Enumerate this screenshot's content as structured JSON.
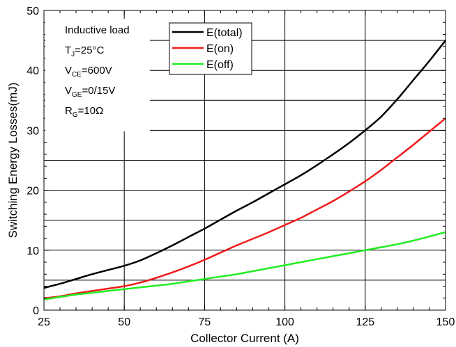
{
  "chart_data": {
    "type": "line",
    "xlabel": "Collector Current (A)",
    "ylabel": "Switching Energy Losses(mJ)",
    "xlim": [
      25,
      150
    ],
    "ylim": [
      0,
      50
    ],
    "x_ticks": [
      "25",
      "50",
      "75",
      "100",
      "125",
      "150"
    ],
    "y_ticks": [
      "0",
      "10",
      "20",
      "30",
      "40",
      "50"
    ],
    "grid": true,
    "legend_position": "top",
    "conditions": [
      {
        "main": "Inductive load",
        "sub": "",
        "rest": ""
      },
      {
        "main": "T",
        "sub": "J",
        "rest": "=25°C"
      },
      {
        "main": "V",
        "sub": "CE",
        "rest": "=600V"
      },
      {
        "main": "V",
        "sub": "GE",
        "rest": "=0/15V"
      },
      {
        "main": "R",
        "sub": "G",
        "rest": "=10Ω"
      }
    ],
    "series": [
      {
        "name": "E(total)",
        "color": "#000000",
        "x": [
          25,
          30,
          35,
          40,
          45,
          50,
          55,
          60,
          65,
          70,
          75,
          80,
          85,
          90,
          95,
          100,
          105,
          110,
          115,
          120,
          125,
          130,
          135,
          140,
          145,
          150
        ],
        "y": [
          3.7,
          4.4,
          5.2,
          6.0,
          6.7,
          7.4,
          8.3,
          9.5,
          10.8,
          12.2,
          13.6,
          15.1,
          16.6,
          18.0,
          19.5,
          21.0,
          22.5,
          24.2,
          26.0,
          27.9,
          30.0,
          32.3,
          35.2,
          38.4,
          41.6,
          45.0
        ]
      },
      {
        "name": "E(on)",
        "color": "#ee1c1c",
        "x": [
          25,
          30,
          35,
          40,
          45,
          50,
          55,
          60,
          65,
          70,
          75,
          80,
          85,
          90,
          95,
          100,
          105,
          110,
          115,
          120,
          125,
          130,
          135,
          140,
          145,
          150
        ],
        "y": [
          2.0,
          2.3,
          2.8,
          3.2,
          3.6,
          4.0,
          4.6,
          5.4,
          6.3,
          7.3,
          8.4,
          9.6,
          10.8,
          11.9,
          13.0,
          14.2,
          15.4,
          16.8,
          18.2,
          19.8,
          21.5,
          23.4,
          25.5,
          27.6,
          29.8,
          32.0
        ]
      },
      {
        "name": "E(off)",
        "color": "#22ee22",
        "x": [
          25,
          30,
          35,
          40,
          45,
          50,
          55,
          60,
          65,
          70,
          75,
          80,
          85,
          90,
          95,
          100,
          105,
          110,
          115,
          120,
          125,
          130,
          135,
          140,
          145,
          150
        ],
        "y": [
          1.8,
          2.2,
          2.6,
          2.9,
          3.2,
          3.5,
          3.8,
          4.1,
          4.4,
          4.8,
          5.2,
          5.6,
          6.0,
          6.5,
          7.0,
          7.5,
          8.0,
          8.5,
          9.0,
          9.5,
          10.0,
          10.5,
          11.0,
          11.6,
          12.3,
          13.0
        ]
      }
    ]
  }
}
